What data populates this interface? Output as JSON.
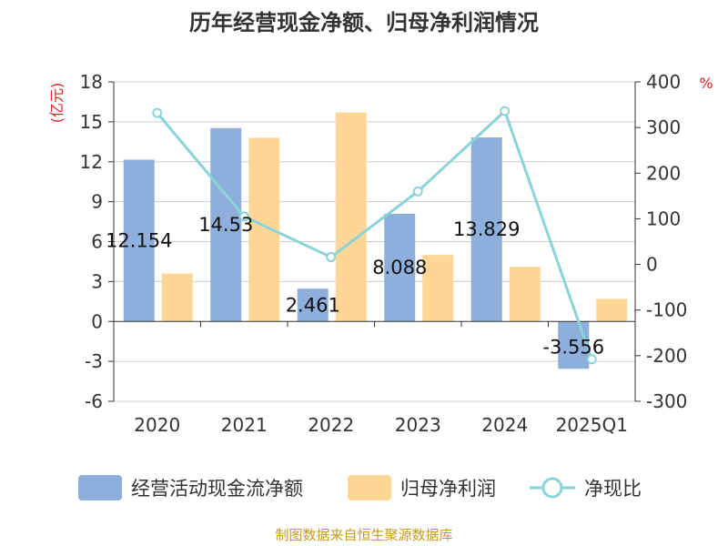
{
  "chart_data": {
    "type": "bar",
    "title": "历年经营现金净额、归母净利润情况",
    "categories": [
      "2020",
      "2021",
      "2022",
      "2023",
      "2024",
      "2025Q1"
    ],
    "y_left": {
      "unit": "(亿元)",
      "ticks": [
        "18",
        "15",
        "12",
        "9",
        "6",
        "3",
        "0",
        "-3",
        "-6"
      ],
      "ylim": [
        -6,
        18
      ]
    },
    "y_right": {
      "unit": "%",
      "ticks": [
        "400",
        "300",
        "200",
        "100",
        "0",
        "-100",
        "-200",
        "-300"
      ],
      "ylim": [
        -300,
        400
      ]
    },
    "series": [
      {
        "name": "经营活动现金流净额",
        "type": "bar",
        "color": "#8eaedb",
        "values": [
          12.154,
          14.53,
          2.461,
          8.088,
          13.829,
          -3.556
        ],
        "labels": [
          "12.154",
          "14.53",
          "2.461",
          "8.088",
          "13.829",
          "-3.556"
        ]
      },
      {
        "name": "归母净利润",
        "type": "bar",
        "color": "#fed797",
        "values": [
          3.6,
          13.8,
          15.7,
          5.0,
          4.1,
          1.7
        ]
      },
      {
        "name": "净现比",
        "type": "line",
        "axis": "right",
        "color": "#8ad3d8",
        "values": [
          332,
          105,
          16,
          160,
          336,
          -208
        ]
      }
    ],
    "grid": true,
    "legend": "bottom"
  },
  "source_text": "制图数据来自恒生聚源数据库"
}
